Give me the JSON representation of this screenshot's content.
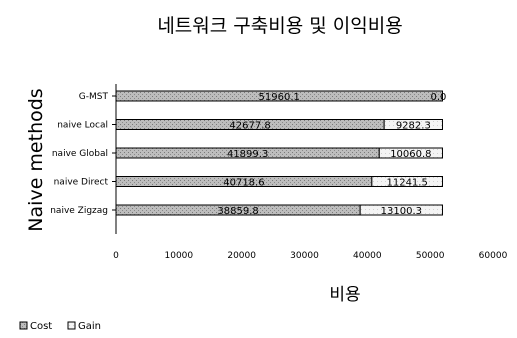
{
  "chart_data": {
    "type": "bar",
    "orientation": "horizontal",
    "stacked": true,
    "title": "네트워크 구축비용 및 이익비용",
    "xlabel": "비용",
    "ylabel": "Naive methods",
    "categories": [
      "G-MST",
      "naive Local",
      "naive Global",
      "naive Direct",
      "naive Zigzag"
    ],
    "series": [
      {
        "name": "Cost",
        "values": [
          51960.1,
          42677.8,
          41899.3,
          40718.6,
          38859.8
        ],
        "labels": [
          "51960.1",
          "42677.8",
          "41899.3",
          "40718.6",
          "38859.8"
        ],
        "color": "#c8c8c8"
      },
      {
        "name": "Gain",
        "values": [
          0,
          9282.3,
          10060.8,
          11241.5,
          13100.3
        ],
        "labels": [
          "0.0",
          "9282.3",
          "10060.8",
          "11241.5",
          "13100.3"
        ],
        "color": "#f2f2f2"
      }
    ],
    "xlim": [
      0,
      60000
    ],
    "xticks": [
      0,
      10000,
      20000,
      30000,
      40000,
      50000,
      60000
    ],
    "xtick_labels": [
      "0",
      "10000",
      "20000",
      "30000",
      "40000",
      "50000",
      "60000"
    ],
    "grid": false,
    "legend": "bottom-left"
  }
}
